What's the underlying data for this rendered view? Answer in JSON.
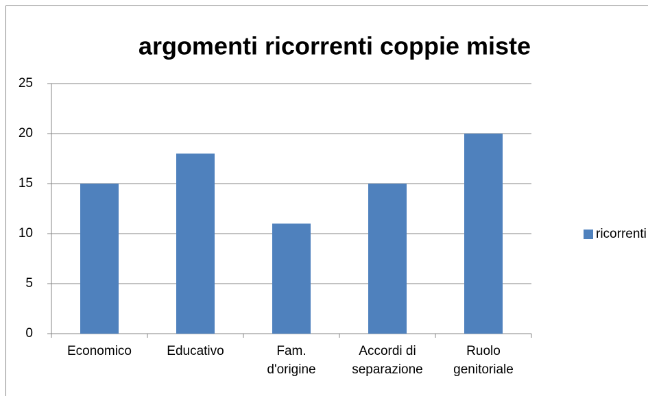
{
  "chart_data": {
    "type": "bar",
    "title": "argomenti ricorrenti coppie miste",
    "categories": [
      "Economico",
      "Educativo",
      "Fam.\nd'origine",
      "Accordi di\nseparazione",
      "Ruolo\ngenitoriale"
    ],
    "series": [
      {
        "name": "ricorrenti",
        "color": "#4f81bd",
        "values": [
          15,
          18,
          11,
          15,
          20
        ]
      }
    ],
    "ylim": [
      0,
      25
    ],
    "yticks": [
      0,
      5,
      10,
      15,
      20,
      25
    ],
    "grid": true,
    "legend": "right"
  }
}
